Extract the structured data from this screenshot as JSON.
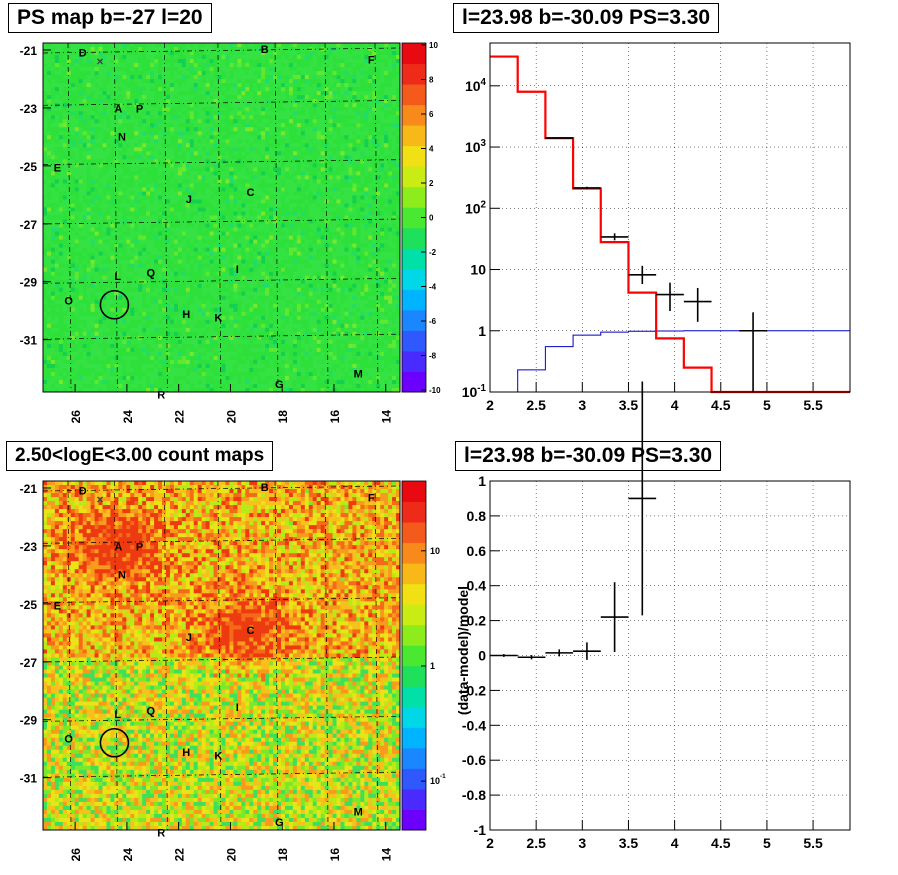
{
  "panels": {
    "ps_map_title": "PS map b=-27 l=20",
    "count_map_title": "2.50<logE<3.00 count maps",
    "spectrum_title": "l=23.98 b=-30.09 PS=3.30",
    "residual_title": "l=23.98 b=-30.09 PS=3.30"
  },
  "colors": {
    "data": "#000000",
    "model": "#ff0000",
    "component": "#0000cc",
    "map_base": "#2ee03a"
  },
  "chart_data": [
    {
      "type": "heatmap",
      "title": "PS map b=-27 l=20",
      "x_ticks": [
        "26",
        "24",
        "22",
        "20",
        "18",
        "16",
        "14"
      ],
      "y_ticks": [
        "-21",
        "-23",
        "-25",
        "-27",
        "-29",
        "-31"
      ],
      "colorbar_ticks": [
        "10",
        "8",
        "6",
        "4",
        "2",
        "0",
        "-2",
        "-4",
        "-6",
        "-8",
        "-10"
      ],
      "zlim": [
        -10,
        10
      ],
      "source_labels": [
        "D",
        "B",
        "F",
        "A",
        "P",
        "N",
        "E",
        "C",
        "J",
        "I",
        "L",
        "Q",
        "O",
        "H",
        "K",
        "M",
        "R",
        "G"
      ],
      "cross_marker": "×"
    },
    {
      "type": "heatmap",
      "title": "2.50<logE<3.00 count maps",
      "x_ticks": [
        "26",
        "24",
        "22",
        "20",
        "18",
        "16",
        "14"
      ],
      "y_ticks": [
        "-21",
        "-23",
        "-25",
        "-27",
        "-29",
        "-31"
      ],
      "colorbar_ticks": [
        "10",
        "1",
        "10-1"
      ],
      "log_scale": true,
      "source_labels": [
        "D",
        "B",
        "F",
        "A",
        "P",
        "N",
        "E",
        "C",
        "J",
        "I",
        "L",
        "Q",
        "O",
        "H",
        "K",
        "M",
        "R",
        "G"
      ],
      "cross_marker": "×"
    },
    {
      "type": "line",
      "title": "l=23.98 b=-30.09 PS=3.30",
      "x_ticks": [
        "2",
        "2.5",
        "3",
        "3.5",
        "4",
        "4.5",
        "5",
        "5.5"
      ],
      "y_ticks": [
        "10-1",
        "1",
        "10",
        "102",
        "103",
        "104"
      ],
      "xlim": [
        2,
        5.9
      ],
      "ylim": [
        0.1,
        50000
      ],
      "log_y": true,
      "grid": true,
      "model_steps": {
        "edges": [
          2,
          2.3,
          2.6,
          2.9,
          3.2,
          3.5,
          3.8,
          4.1,
          4.4,
          4.7,
          5.0,
          5.9
        ],
        "values": [
          30000,
          8000,
          1400,
          210,
          28,
          4.2,
          0.75,
          0.25,
          0.1,
          0.1,
          0.1
        ]
      },
      "component_steps": {
        "edges": [
          2,
          2.3,
          2.6,
          2.9,
          3.2,
          3.5,
          3.8,
          4.1,
          4.4,
          4.7,
          5.0,
          5.9
        ],
        "values": [
          0.1,
          0.23,
          0.55,
          0.85,
          0.95,
          0.98,
          0.99,
          1.0,
          1.0,
          1.0,
          1.0
        ]
      },
      "data_points": [
        {
          "x": 2.75,
          "y": 1400,
          "xerr": 0.15,
          "ylo": 1380,
          "yhi": 1420
        },
        {
          "x": 3.05,
          "y": 215,
          "xerr": 0.15,
          "ylo": 205,
          "yhi": 225
        },
        {
          "x": 3.35,
          "y": 34,
          "xerr": 0.15,
          "ylo": 30,
          "yhi": 39
        },
        {
          "x": 3.65,
          "y": 8.2,
          "xerr": 0.15,
          "ylo": 5.8,
          "yhi": 11.5
        },
        {
          "x": 3.95,
          "y": 3.9,
          "xerr": 0.15,
          "ylo": 2.1,
          "yhi": 6.1
        },
        {
          "x": 4.25,
          "y": 3.0,
          "xerr": 0.15,
          "ylo": 1.4,
          "yhi": 5.0
        },
        {
          "x": 4.85,
          "y": 1.0,
          "xerr": 0.15,
          "ylo": 0.1,
          "yhi": 2.0
        }
      ]
    },
    {
      "type": "scatter",
      "title": "l=23.98 b=-30.09 PS=3.30",
      "ylabel": "(data-model)/model",
      "x_ticks": [
        "2",
        "2.5",
        "3",
        "3.5",
        "4",
        "4.5",
        "5",
        "5.5"
      ],
      "y_ticks": [
        "-1",
        "-0.8",
        "-0.6",
        "-0.4",
        "-0.2",
        "0",
        "0.2",
        "0.4",
        "0.6",
        "0.8",
        "1"
      ],
      "xlim": [
        2,
        5.9
      ],
      "ylim": [
        -1,
        1
      ],
      "grid": true,
      "data_points": [
        {
          "x": 2.15,
          "y": 0.0,
          "xerr": 0.15,
          "yerr": 0.008
        },
        {
          "x": 2.45,
          "y": -0.01,
          "xerr": 0.15,
          "yerr": 0.012
        },
        {
          "x": 2.75,
          "y": 0.015,
          "xerr": 0.15,
          "yerr": 0.02
        },
        {
          "x": 3.05,
          "y": 0.025,
          "xerr": 0.15,
          "yerr": 0.05
        },
        {
          "x": 3.35,
          "y": 0.22,
          "xerr": 0.15,
          "yerr": 0.2
        },
        {
          "x": 3.65,
          "y": 0.9,
          "xerr": 0.15,
          "yerr": 0.67
        }
      ]
    }
  ]
}
